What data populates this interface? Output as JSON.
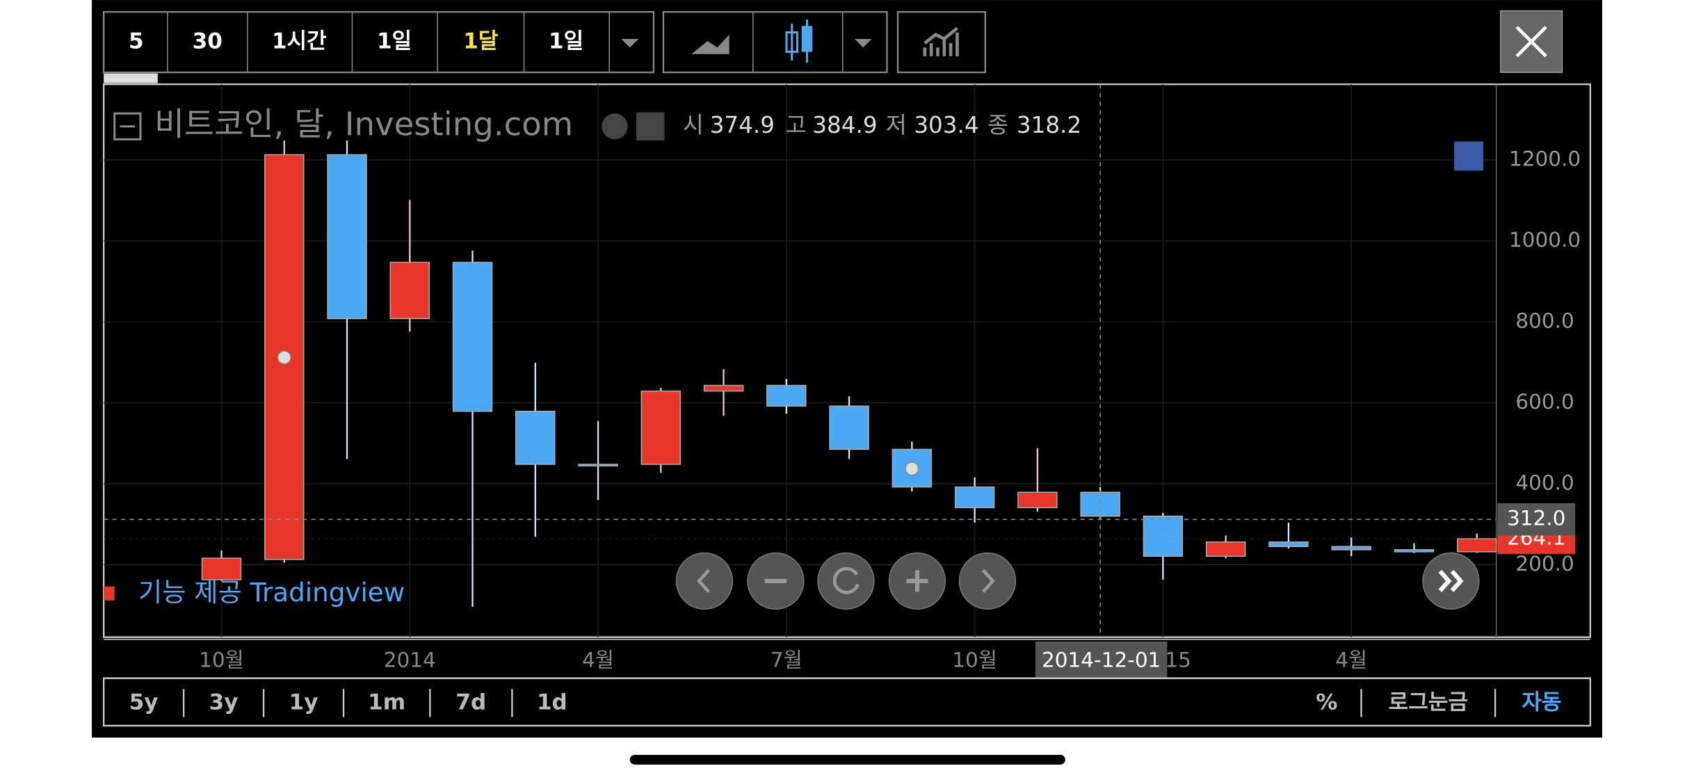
{
  "toolbar": {
    "intervals": [
      "5",
      "30",
      "1시간",
      "1일",
      "1달",
      "1일"
    ]
  },
  "chart_data": {
    "type": "candlestick",
    "title": "비트코인, 달, Investing.com",
    "categories": [
      "10월",
      null,
      null,
      "2014",
      null,
      null,
      "4월",
      null,
      null,
      "7월",
      null,
      null,
      "10월",
      null,
      null,
      "15",
      null,
      null,
      "4월",
      null,
      null
    ],
    "open": [
      163,
      213,
      1213,
      808,
      947,
      579,
      448,
      448,
      629,
      643,
      592,
      485,
      392,
      341,
      379,
      320,
      221,
      256,
      245,
      237,
      232
    ],
    "high": [
      235,
      1248,
      1248,
      1101,
      976,
      699,
      555,
      637,
      683,
      659,
      616,
      504,
      416,
      488,
      392,
      328,
      272,
      304,
      267,
      253,
      277
    ],
    "low": [
      160,
      205,
      461,
      776,
      96,
      269,
      360,
      427,
      568,
      573,
      461,
      381,
      304,
      331,
      312,
      163,
      216,
      240,
      221,
      229,
      229
    ],
    "close": [
      216,
      1213,
      808,
      947,
      579,
      448,
      446,
      629,
      643,
      592,
      485,
      392,
      341,
      379,
      320,
      221,
      256,
      245,
      237,
      232,
      264.1
    ],
    "up_color": "#e8372a",
    "down_color": "#4aa8f5",
    "ylim": [
      21,
      1387
    ],
    "yticks": [
      {
        "value": 200,
        "label": "200.0"
      },
      {
        "value": 400,
        "label": "400.0"
      },
      {
        "value": 600,
        "label": "600.0"
      },
      {
        "value": 800,
        "label": "800.0"
      },
      {
        "value": 1000,
        "label": "1000.0"
      },
      {
        "value": 1200,
        "label": "1200.0"
      }
    ],
    "grid": true,
    "ohlc_legend": {
      "labels": [
        "시",
        "고",
        "저",
        "종"
      ],
      "values": [
        374.9,
        384.9,
        303.4,
        318.2
      ]
    },
    "crosshair": {
      "x_label": "2014-12-01",
      "y": {
        "value": 312,
        "label": "312.0"
      }
    },
    "last_price": {
      "value": 264.1,
      "label": "264.1"
    },
    "watermark": "기능 제공 Tradingview"
  },
  "footer": {
    "ranges": [
      "5y",
      "3y",
      "1y",
      "1m",
      "7d",
      "1d"
    ],
    "options": [
      "%",
      "로그눈금",
      "자동"
    ]
  }
}
